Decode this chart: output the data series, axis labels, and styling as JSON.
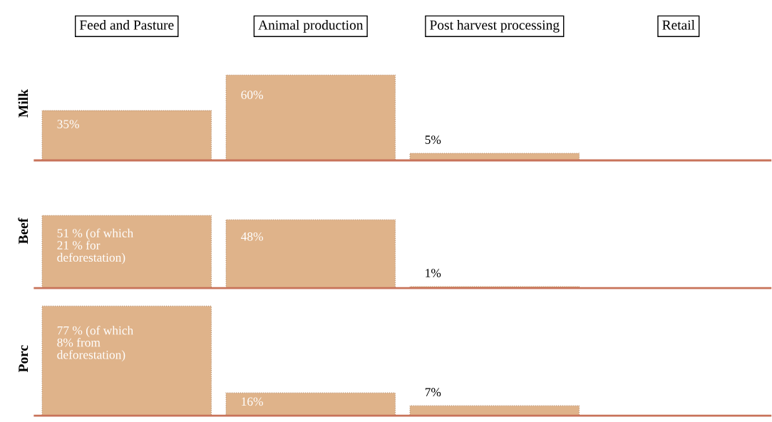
{
  "chart_data": [
    {
      "type": "bar",
      "ylabel": "Milk",
      "categories": [
        "Feed and Pasture",
        "Animal production",
        "Post harvest processing",
        "Retail"
      ],
      "values": [
        35,
        60,
        5,
        null
      ],
      "value_labels": [
        "35%",
        "60%",
        "5%",
        null
      ],
      "color": "#dfb38a",
      "tick_labels": "x",
      "grid": false,
      "legend": false
    },
    {
      "type": "bar",
      "ylabel": "Beef",
      "values": [
        51,
        48,
        1,
        null
      ],
      "value_labels": [
        "51 % (of which\n21 % for\ndeforestation)",
        "48%",
        "1%",
        null
      ],
      "color": "#dfb38a",
      "tick_labels": false,
      "grid": false,
      "legend": false
    },
    {
      "type": "bar",
      "ylabel": "Porc",
      "values": [
        77,
        16,
        7,
        null
      ],
      "value_labels": [
        "77 % (of which\n8% from\ndeforestation)",
        "16%",
        "7%",
        null
      ],
      "color": "#dfb38a",
      "tick_labels": false,
      "grid": false,
      "legend": false
    }
  ]
}
